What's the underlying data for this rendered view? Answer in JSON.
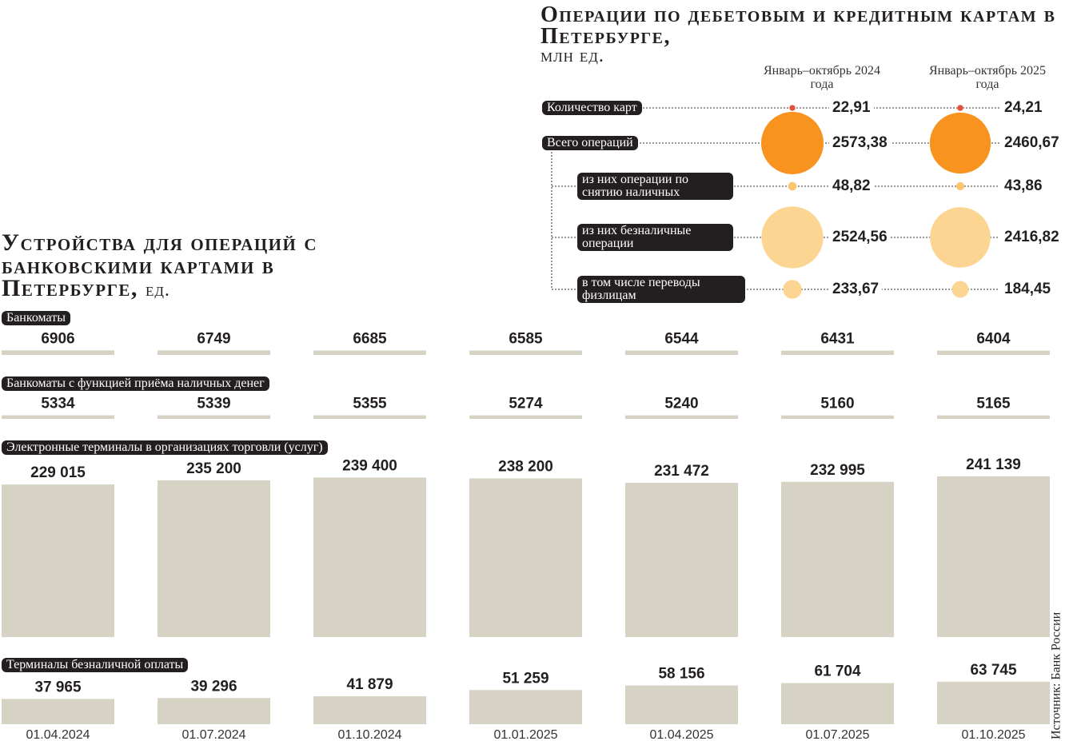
{
  "chart_data": [
    {
      "type": "bubble",
      "title": "Операции по дебетовым и кредитным картам в Петербурге,",
      "subtitle": "млн ед.",
      "categories": [
        "Количество карт",
        "Всего операций",
        "из них операции по снятию наличных",
        "из них безналичные операции",
        "в том числе переводы физлицам"
      ],
      "colors": [
        "#e0533a",
        "#f7931e",
        "#fcc46e",
        "#fdd592",
        "#fdd592"
      ],
      "series": [
        {
          "name": "Январь–октябрь 2024 года",
          "values": [
            22.91,
            2573.38,
            48.82,
            2524.56,
            233.67
          ],
          "value_labels": [
            "22,91",
            "2573,38",
            "48,82",
            "2524,56",
            "233,67"
          ]
        },
        {
          "name": "Январь–октябрь 2025 года",
          "values": [
            24.21,
            2460.67,
            43.86,
            2416.82,
            184.45
          ],
          "value_labels": [
            "24,21",
            "2460,67",
            "43,86",
            "2416,82",
            "184,45"
          ]
        }
      ]
    },
    {
      "type": "bar",
      "title": "Устройства для операций с банковскими картами в Петербурге,",
      "subtitle": "ед.",
      "categories": [
        "01.04.2024",
        "01.07.2024",
        "01.10.2024",
        "01.01.2025",
        "01.04.2025",
        "01.07.2025",
        "01.10.2025"
      ],
      "series": [
        {
          "name": "Банкоматы",
          "color": "#d6d3c4",
          "values": [
            6906,
            6749,
            6685,
            6585,
            6544,
            6431,
            6404
          ]
        },
        {
          "name": "Банкоматы с функцией приёма наличных денег",
          "color": "#d6d3c4",
          "values": [
            5334,
            5339,
            5355,
            5274,
            5240,
            5160,
            5165
          ]
        },
        {
          "name": "Электронные терминалы в организациях торговли (услуг)",
          "color": "#d6d3c4",
          "values": [
            229015,
            235200,
            239400,
            238200,
            231472,
            232995,
            241139
          ],
          "value_labels": [
            "229 015",
            "235 200",
            "239 400",
            "238 200",
            "231 472",
            "232 995",
            "241 139"
          ]
        },
        {
          "name": "Терминалы безналичной оплаты",
          "color": "#d6d3c4",
          "values": [
            37965,
            39296,
            41879,
            51259,
            58156,
            61704,
            63745
          ],
          "value_labels": [
            "37 965",
            "39 296",
            "41 879",
            "51 259",
            "58 156",
            "61 704",
            "63 745"
          ]
        }
      ]
    }
  ],
  "source": "Источник: Банк России"
}
